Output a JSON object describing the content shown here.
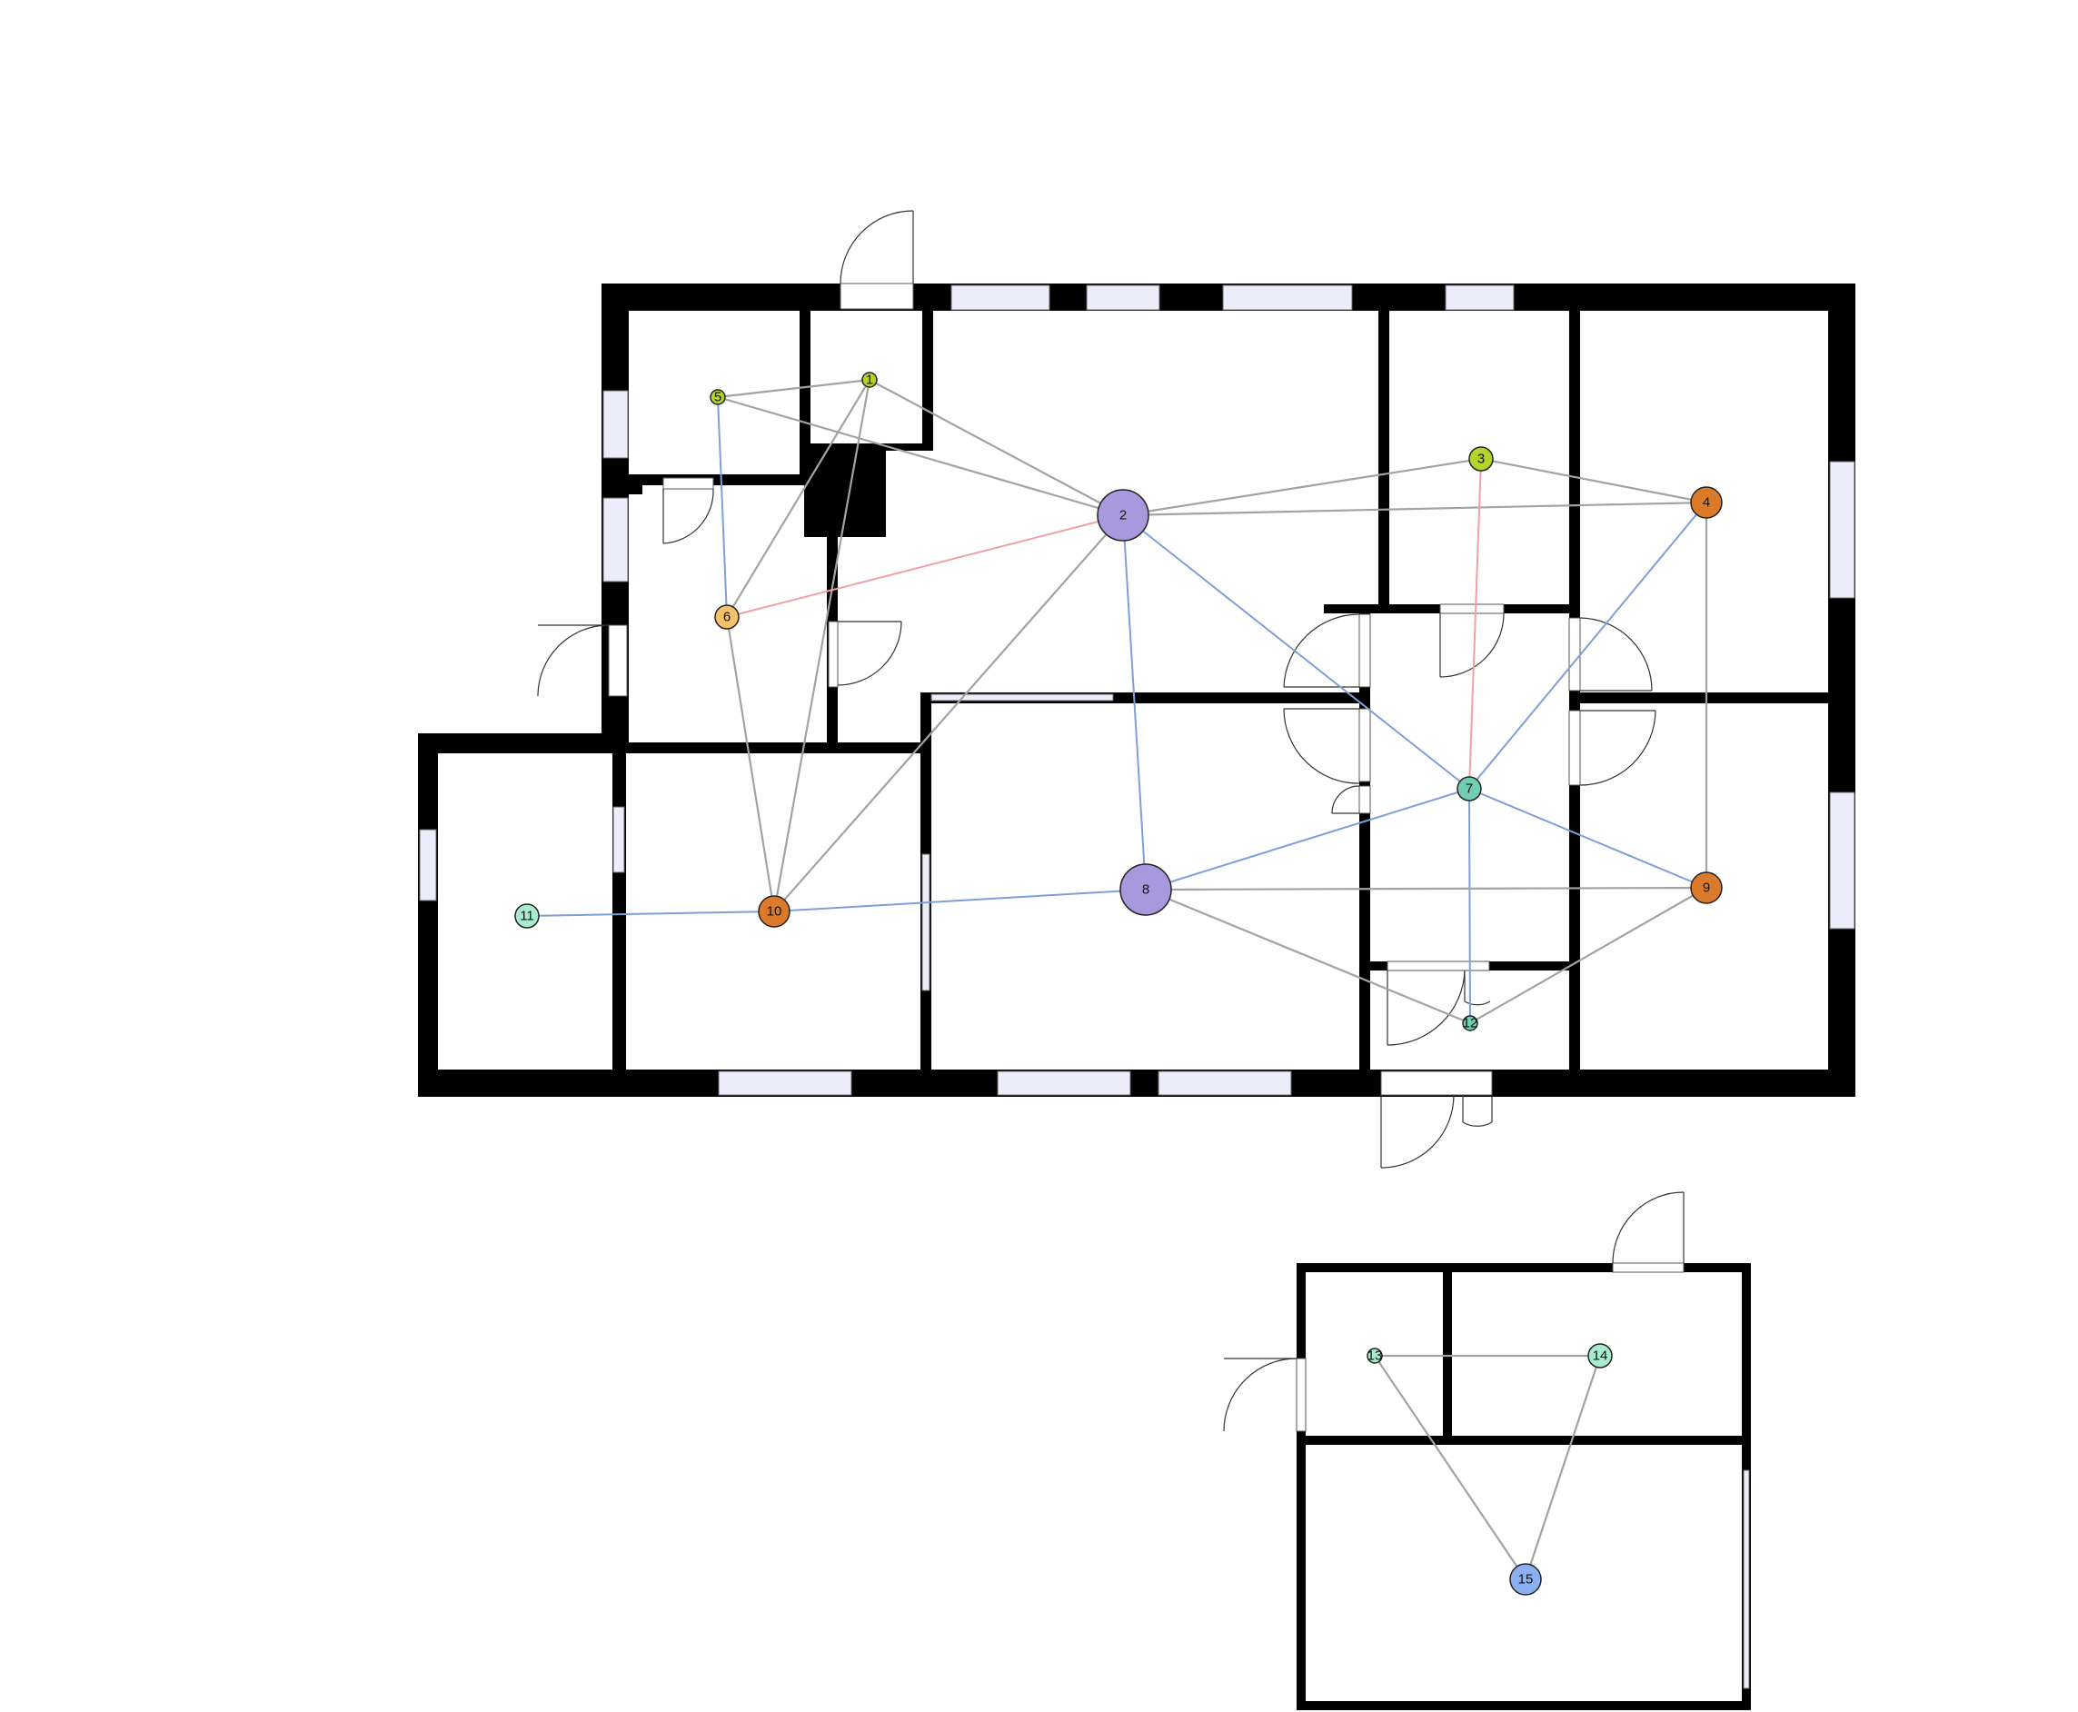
{
  "colors": {
    "wall": "#000000",
    "window_fill": "#ececfb",
    "edge_gray": "#a3a3a3",
    "edge_blue": "#7f9fd8",
    "edge_red": "#f0a0a8"
  },
  "graph": {
    "nodes": [
      {
        "id": "1",
        "label": "1",
        "color": "#b5d42a",
        "size": "tiny"
      },
      {
        "id": "2",
        "label": "2",
        "color": "#a898dd",
        "size": "large"
      },
      {
        "id": "3",
        "label": "3",
        "color": "#b5d42a",
        "size": "small"
      },
      {
        "id": "4",
        "label": "4",
        "color": "#db7a2a",
        "size": "medium"
      },
      {
        "id": "5",
        "label": "5",
        "color": "#b5d42a",
        "size": "tiny"
      },
      {
        "id": "6",
        "label": "6",
        "color": "#f5c26b",
        "size": "small"
      },
      {
        "id": "7",
        "label": "7",
        "color": "#73cdb3",
        "size": "small"
      },
      {
        "id": "8",
        "label": "8",
        "color": "#a898dd",
        "size": "large"
      },
      {
        "id": "9",
        "label": "9",
        "color": "#db7a2a",
        "size": "medium"
      },
      {
        "id": "10",
        "label": "10",
        "color": "#db7a2a",
        "size": "medium"
      },
      {
        "id": "11",
        "label": "11",
        "color": "#a8ecd0",
        "size": "small"
      },
      {
        "id": "12",
        "label": "12",
        "color": "#73cdb3",
        "size": "tiny"
      },
      {
        "id": "13",
        "label": "13",
        "color": "#a8ecd0",
        "size": "tiny"
      },
      {
        "id": "14",
        "label": "14",
        "color": "#a8ecd0",
        "size": "small"
      },
      {
        "id": "15",
        "label": "15",
        "color": "#8bb0f2",
        "size": "medium"
      }
    ],
    "edges": [
      {
        "from": "5",
        "to": "1",
        "kind": "gray"
      },
      {
        "from": "5",
        "to": "2",
        "kind": "gray"
      },
      {
        "from": "5",
        "to": "6",
        "kind": "blue"
      },
      {
        "from": "1",
        "to": "2",
        "kind": "gray"
      },
      {
        "from": "1",
        "to": "6",
        "kind": "gray"
      },
      {
        "from": "1",
        "to": "10",
        "kind": "gray"
      },
      {
        "from": "6",
        "to": "10",
        "kind": "gray"
      },
      {
        "from": "6",
        "to": "2",
        "kind": "red"
      },
      {
        "from": "2",
        "to": "3",
        "kind": "gray"
      },
      {
        "from": "2",
        "to": "4",
        "kind": "gray"
      },
      {
        "from": "2",
        "to": "7",
        "kind": "blue"
      },
      {
        "from": "2",
        "to": "8",
        "kind": "blue"
      },
      {
        "from": "2",
        "to": "10",
        "kind": "gray"
      },
      {
        "from": "3",
        "to": "4",
        "kind": "gray"
      },
      {
        "from": "3",
        "to": "7",
        "kind": "red"
      },
      {
        "from": "4",
        "to": "7",
        "kind": "blue"
      },
      {
        "from": "4",
        "to": "9",
        "kind": "gray"
      },
      {
        "from": "7",
        "to": "8",
        "kind": "blue"
      },
      {
        "from": "7",
        "to": "9",
        "kind": "blue"
      },
      {
        "from": "7",
        "to": "12",
        "kind": "blue"
      },
      {
        "from": "8",
        "to": "9",
        "kind": "gray"
      },
      {
        "from": "8",
        "to": "10",
        "kind": "blue"
      },
      {
        "from": "8",
        "to": "12",
        "kind": "gray"
      },
      {
        "from": "9",
        "to": "12",
        "kind": "gray"
      },
      {
        "from": "10",
        "to": "11",
        "kind": "blue"
      },
      {
        "from": "13",
        "to": "14",
        "kind": "gray"
      },
      {
        "from": "13",
        "to": "15",
        "kind": "gray"
      },
      {
        "from": "14",
        "to": "15",
        "kind": "gray"
      }
    ]
  }
}
